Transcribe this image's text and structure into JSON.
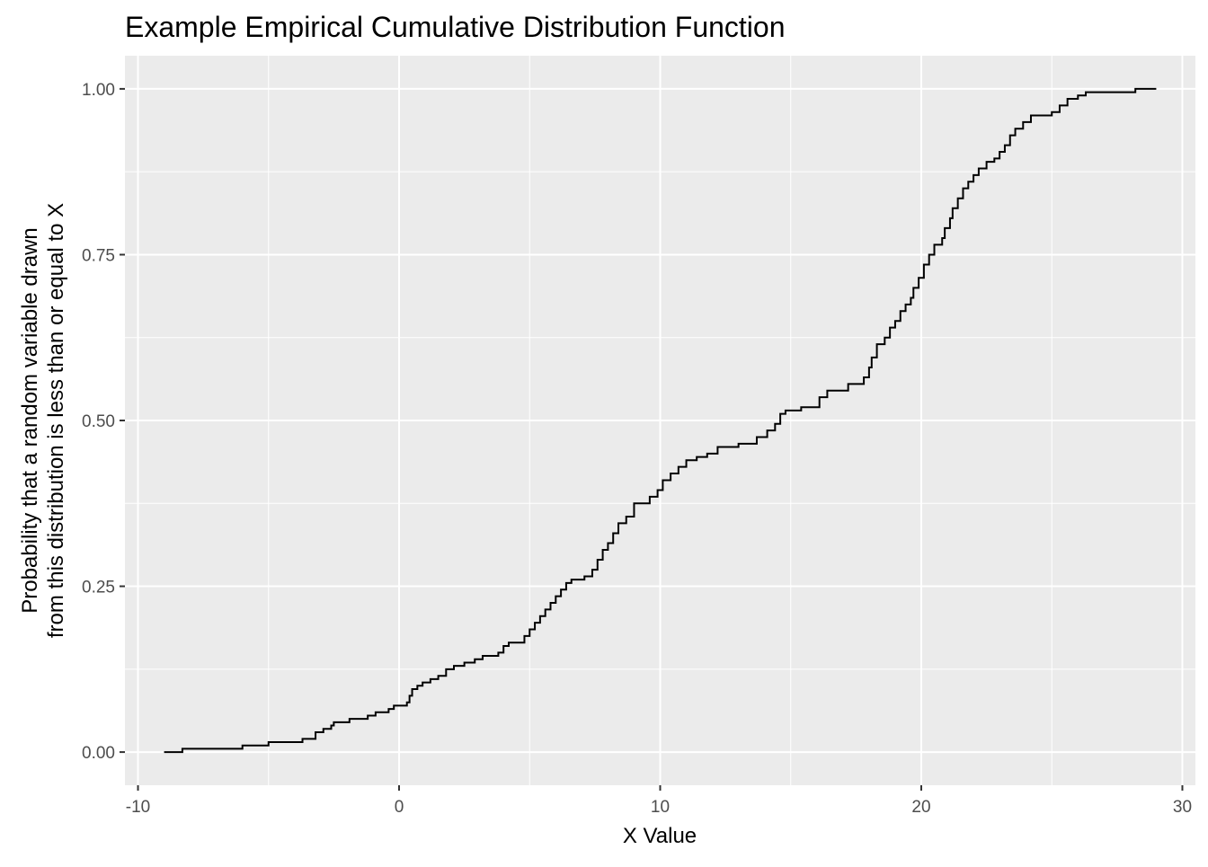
{
  "chart_data": {
    "type": "line",
    "step": true,
    "title": "Example Empirical Cumulative Distribution Function",
    "xlabel": "X Value",
    "ylabel_lines": [
      "Probability that a random variable drawn",
      "from this distribution is less than or equal to X"
    ],
    "xlim": [
      -10.5,
      30.5
    ],
    "ylim": [
      -0.05,
      1.05
    ],
    "x_ticks": [
      -10,
      0,
      10,
      20,
      30
    ],
    "x_tick_labels": [
      "-10",
      "0",
      "10",
      "20",
      "30"
    ],
    "y_ticks": [
      0,
      0.25,
      0.5,
      0.75,
      1.0
    ],
    "y_tick_labels": [
      "0.00",
      "0.25",
      "0.50",
      "0.75",
      "1.00"
    ],
    "grid": true,
    "legend": "none",
    "series": [
      {
        "color": "#000000",
        "points": [
          [
            -9.0,
            0.0
          ],
          [
            -8.3,
            0.005
          ],
          [
            -6.0,
            0.01
          ],
          [
            -5.0,
            0.015
          ],
          [
            -3.7,
            0.02
          ],
          [
            -3.2,
            0.03
          ],
          [
            -2.9,
            0.035
          ],
          [
            -2.6,
            0.04
          ],
          [
            -2.5,
            0.045
          ],
          [
            -1.9,
            0.05
          ],
          [
            -1.2,
            0.055
          ],
          [
            -0.9,
            0.06
          ],
          [
            -0.4,
            0.065
          ],
          [
            -0.2,
            0.07
          ],
          [
            0.3,
            0.075
          ],
          [
            0.4,
            0.085
          ],
          [
            0.5,
            0.095
          ],
          [
            0.7,
            0.1
          ],
          [
            0.9,
            0.105
          ],
          [
            1.2,
            0.11
          ],
          [
            1.5,
            0.115
          ],
          [
            1.8,
            0.125
          ],
          [
            2.1,
            0.13
          ],
          [
            2.5,
            0.135
          ],
          [
            2.9,
            0.14
          ],
          [
            3.2,
            0.145
          ],
          [
            3.8,
            0.15
          ],
          [
            4.0,
            0.16
          ],
          [
            4.2,
            0.165
          ],
          [
            4.8,
            0.175
          ],
          [
            5.0,
            0.185
          ],
          [
            5.2,
            0.195
          ],
          [
            5.4,
            0.205
          ],
          [
            5.6,
            0.215
          ],
          [
            5.8,
            0.225
          ],
          [
            6.0,
            0.235
          ],
          [
            6.2,
            0.245
          ],
          [
            6.4,
            0.255
          ],
          [
            6.6,
            0.26
          ],
          [
            7.1,
            0.265
          ],
          [
            7.4,
            0.275
          ],
          [
            7.6,
            0.29
          ],
          [
            7.8,
            0.305
          ],
          [
            8.0,
            0.315
          ],
          [
            8.2,
            0.33
          ],
          [
            8.4,
            0.345
          ],
          [
            8.7,
            0.355
          ],
          [
            9.0,
            0.375
          ],
          [
            9.6,
            0.385
          ],
          [
            9.9,
            0.395
          ],
          [
            10.1,
            0.41
          ],
          [
            10.4,
            0.42
          ],
          [
            10.7,
            0.43
          ],
          [
            11.0,
            0.44
          ],
          [
            11.4,
            0.445
          ],
          [
            11.8,
            0.45
          ],
          [
            12.2,
            0.46
          ],
          [
            13.0,
            0.465
          ],
          [
            13.7,
            0.475
          ],
          [
            14.1,
            0.485
          ],
          [
            14.4,
            0.495
          ],
          [
            14.6,
            0.51
          ],
          [
            14.8,
            0.515
          ],
          [
            15.4,
            0.52
          ],
          [
            16.1,
            0.535
          ],
          [
            16.4,
            0.545
          ],
          [
            17.2,
            0.555
          ],
          [
            17.8,
            0.565
          ],
          [
            18.0,
            0.58
          ],
          [
            18.1,
            0.595
          ],
          [
            18.3,
            0.615
          ],
          [
            18.6,
            0.625
          ],
          [
            18.8,
            0.64
          ],
          [
            19.0,
            0.65
          ],
          [
            19.2,
            0.665
          ],
          [
            19.4,
            0.675
          ],
          [
            19.6,
            0.685
          ],
          [
            19.7,
            0.7
          ],
          [
            19.9,
            0.715
          ],
          [
            20.1,
            0.735
          ],
          [
            20.3,
            0.75
          ],
          [
            20.5,
            0.765
          ],
          [
            20.8,
            0.775
          ],
          [
            20.9,
            0.79
          ],
          [
            21.1,
            0.805
          ],
          [
            21.2,
            0.82
          ],
          [
            21.4,
            0.835
          ],
          [
            21.6,
            0.85
          ],
          [
            21.8,
            0.86
          ],
          [
            22.0,
            0.87
          ],
          [
            22.2,
            0.88
          ],
          [
            22.5,
            0.89
          ],
          [
            22.8,
            0.895
          ],
          [
            23.0,
            0.905
          ],
          [
            23.2,
            0.915
          ],
          [
            23.4,
            0.93
          ],
          [
            23.6,
            0.94
          ],
          [
            23.9,
            0.95
          ],
          [
            24.2,
            0.96
          ],
          [
            25.0,
            0.965
          ],
          [
            25.3,
            0.975
          ],
          [
            25.6,
            0.985
          ],
          [
            26.0,
            0.99
          ],
          [
            26.3,
            0.995
          ],
          [
            28.2,
            1.0
          ],
          [
            29.0,
            1.0
          ]
        ]
      }
    ]
  }
}
